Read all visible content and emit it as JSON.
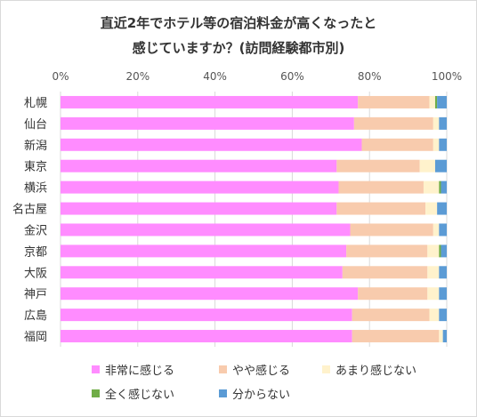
{
  "chart_data": {
    "type": "bar",
    "orientation": "horizontal",
    "stacked": "percent",
    "title_lines": [
      "直近2年でホテル等の宿泊料金が高くなったと",
      "感じていますか？(訪問経験都市別)"
    ],
    "categories": [
      "札幌",
      "仙台",
      "新潟",
      "東京",
      "横浜",
      "名古屋",
      "金沢",
      "京都",
      "大阪",
      "神戸",
      "広島",
      "福岡"
    ],
    "series": [
      {
        "name": "非常に感じる",
        "color": "#ff8cff",
        "values": [
          77,
          76,
          78,
          71.5,
          72,
          71.5,
          75,
          74,
          73,
          77,
          75.5,
          75.5
        ]
      },
      {
        "name": "やや感じる",
        "color": "#f8cbad",
        "values": [
          18.5,
          20.5,
          18.5,
          21.5,
          22,
          23,
          21.5,
          21,
          22,
          18,
          20,
          22.5
        ]
      },
      {
        "name": "あまり感じない",
        "color": "#fff2cc",
        "values": [
          1.5,
          1.5,
          1.5,
          4,
          4,
          3,
          1.5,
          3,
          3,
          3,
          2.5,
          1
        ]
      },
      {
        "name": "全く感じない",
        "color": "#70ad47",
        "values": [
          0.5,
          0,
          0,
          0,
          0.5,
          0,
          0,
          0.5,
          0,
          0,
          0,
          0
        ]
      },
      {
        "name": "分からない",
        "color": "#5b9bd5",
        "values": [
          2.5,
          2,
          2,
          3,
          1.5,
          2.5,
          2,
          1.5,
          2,
          2,
          2,
          1
        ]
      }
    ],
    "x_tick_labels": [
      "0%",
      "20%",
      "40%",
      "60%",
      "80%",
      "100%"
    ],
    "xlim": [
      0,
      100
    ],
    "grid": true,
    "legend_position": "bottom"
  }
}
